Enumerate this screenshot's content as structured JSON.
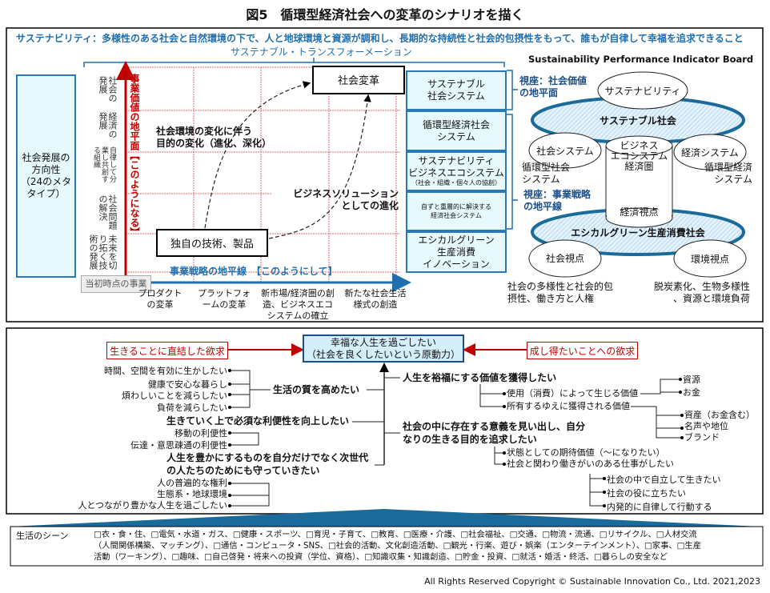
{
  "title": "図5　循環型経済社会への変革のシナリオを描く",
  "upper": {
    "sustainability_statement": "サステナビリティ：多様性のある社会と自然環境の下で、人と地球環境と資源が調和し、長期的な持続性と社会的包摂性をもって、誰もが自律して幸福を追求できること",
    "transformation_label": "サステナブル・トランスフォーメーション",
    "left_box": [
      "社会発展の",
      "方向性",
      "（24のメタ",
      "タイプ）"
    ],
    "vertical_labels": [
      "社会の発展",
      "経済の発展",
      "自律して分業し共創する組織",
      "社会問題の解決",
      "未来を切り拓く技術の発展"
    ],
    "y_axis_label": "事業価値の地平面【このようになる】",
    "x_axis_label": "事業戦略の地平線　【このようにして】",
    "origin_label": "当初時点の事業",
    "x_labels": [
      [
        "プロダクト",
        "の変革"
      ],
      [
        "プラットフォ",
        "ームの変革"
      ],
      [
        "新市場/経済圏の創",
        "造、ビジネスエコ",
        "システムの確立"
      ],
      [
        "新たな社会生活",
        "様式の創造"
      ]
    ],
    "goal_box": "社会変革",
    "start_box": "独自の技術、製品",
    "path_label_1": [
      "社会環境の変化に伴う",
      "目的の変化（進化、深化）"
    ],
    "path_label_2": [
      "ビジネスソリューション",
      "としての進化"
    ],
    "right_column": [
      {
        "lines": [
          "サステナブル",
          "社会システム"
        ]
      },
      {
        "lines": [
          "循環型経済社会",
          "システム"
        ]
      },
      {
        "lines": [
          "サステナビリティ",
          "ビジネスエコシステム"
        ],
        "sub": "（社会・組織・個々人の協創）"
      },
      {
        "lines": [
          "自ずと重層的に解決する",
          "経済社会システム"
        ]
      },
      {
        "lines": [
          "エシカルグリーン",
          "生産消費",
          "イノベーション"
        ]
      }
    ],
    "board": {
      "title": "Sustainability Performance Indicator Board",
      "viewpoint_social": [
        "視座：社会価値",
        "の地平面"
      ],
      "viewpoint_business": [
        "視座：事業戦略",
        "の地平線"
      ],
      "sustainability": "サステナビリティ",
      "sustainable_society": "サステナブル社会",
      "social_system": "社会システム",
      "economic_system": "経済システム",
      "ecosystem": [
        "ビジネス",
        "エコシステム",
        "経済圏"
      ],
      "economic_view": "経済視点",
      "circular_society": [
        "循環型社会",
        "システム"
      ],
      "circular_economy": [
        "循環型経済",
        "システム"
      ],
      "ethical_society": "エシカルグリーン生産消費社会",
      "social_view": "社会視点",
      "environment_view": "環境視点",
      "social_note": [
        "社会の多様性と社会的包",
        "摂性、働き方と人権"
      ],
      "environment_note": [
        "脱炭素化、生物多様性",
        "、資源と環境負荷"
      ]
    }
  },
  "lower": {
    "center": [
      "幸福な人生を過ごしたい",
      "（社会を良くしたいという原動力）"
    ],
    "left_need": "生きることに直結した欲求",
    "right_need": "成し得たいことへの欲求",
    "quality": {
      "label": "生活の質を高めたい",
      "items": [
        "時間、空間を有効に生かしたい",
        "健康で安心な暮らし",
        "煩わしいことを減らしたい",
        "負荷を減らしたい"
      ]
    },
    "convenience": {
      "label": "生きていく上で必須な利便性を向上したい",
      "items": [
        "移動の利便性",
        "伝達・意思疎通の利便性"
      ]
    },
    "protect": {
      "label": [
        "人生を豊かにするものを自分だけでなく次世代",
        "の人たちのためにも守っていきたい"
      ],
      "items": [
        "人の普遍的な権利",
        "生態系・地球環境",
        "人とつながり豊かな人生を過ごしたい"
      ]
    },
    "wealth": {
      "label": "人生を裕福にする価値を獲得したい",
      "use": "使用（消費）によって生じる価値",
      "use_items": [
        "資源",
        "お金"
      ],
      "own": "所有するゆえに獲得される価値",
      "own_items": [
        "資産（お金含む）",
        "名声や地位",
        "ブランド"
      ]
    },
    "purpose": {
      "label": [
        "社会の中に存在する意義を見い出し、自分",
        "なりの生きる目的を追求したい"
      ],
      "items": [
        "状態としての期待価値（～になりたい）",
        "社会と関わり働きがいのある仕事がしたい"
      ],
      "sub_items": [
        "社会の中で自立して生きたい",
        "社会の役に立ちたい",
        "内発的に自律して行動する"
      ]
    }
  },
  "life_scenes": {
    "label": "生活のシーン",
    "lines": [
      "□衣・食・住、□電気・水道・ガス、□健康・スポーツ、□育児・子育て、□教育、□医療・介護、□社会福祉、□交通、□物流・流通、□リサイクル、□人材交流",
      "（人間関係構築、マッチング）、□通信・コンピュータ・SNS、□社会的活動、文化創造活動、□観光・行楽、遊び・娯楽（エンターテインメント）、□家事、□生産",
      "活動（ワーキング）、□趣味、□自己啓発・将来への投資（学位、資格）、□知識収集・知識創造、□貯金・投資、□就活・婚活・終活、□暮らしの安全など"
    ]
  },
  "copyright": "All Rights Reserved Copyright © Sustainable Innovation Co., Ltd.  2021,2023",
  "colors": {
    "accent_blue": "#1f6fb0",
    "dark_blue": "#1a4f8a",
    "red": "#c00000",
    "box_fill": "#e6f9fd"
  }
}
